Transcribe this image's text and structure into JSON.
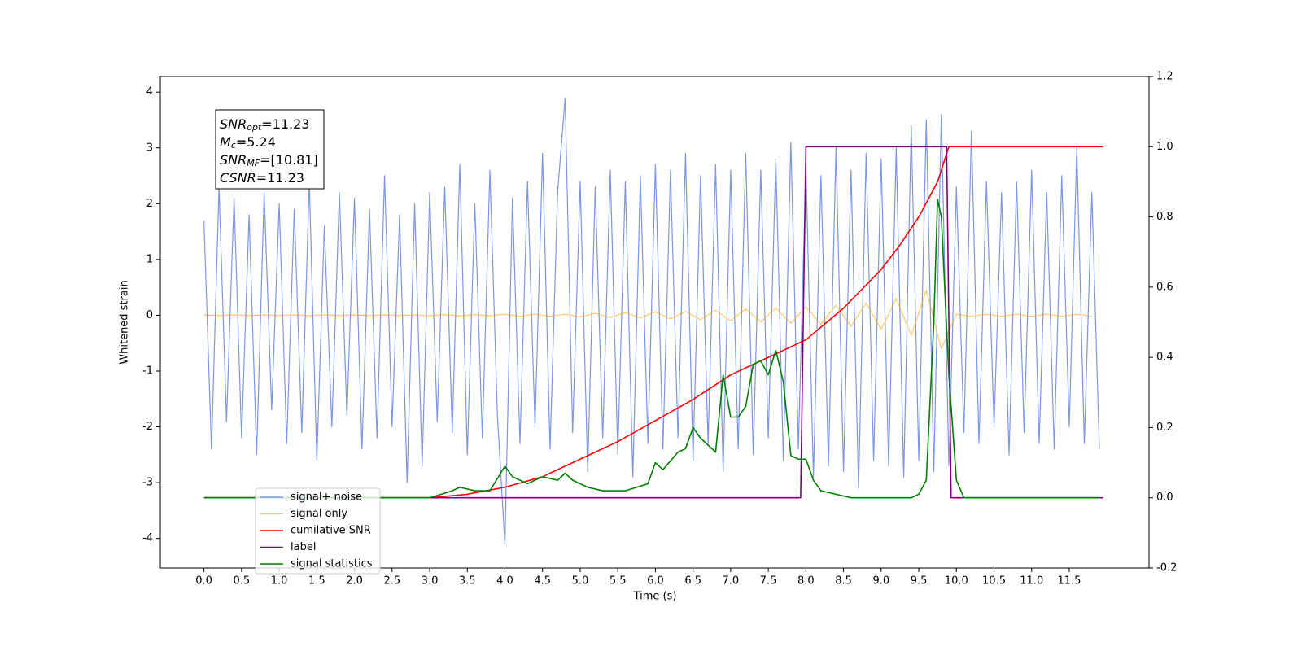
{
  "chart_data": {
    "type": "line",
    "xlabel": "Time (s)",
    "ylabel": "Whitened strain",
    "xlim": [
      -0.58,
      12.56
    ],
    "ylim": [
      -4.53,
      4.28
    ],
    "y2lim": [
      -0.2,
      1.2
    ],
    "xticks": [
      {
        "value": 0,
        "label": "0.0"
      },
      0.5,
      {
        "value": 1,
        "label": "1.0"
      },
      1.5,
      {
        "value": 2,
        "label": "2.0"
      },
      2.5,
      {
        "value": 3,
        "label": "3.0"
      },
      3.5,
      {
        "value": 4,
        "label": "4.0"
      },
      4.5,
      {
        "value": 5,
        "label": "5.0"
      },
      5.5,
      {
        "value": 6,
        "label": "6.0"
      },
      6.5,
      {
        "value": 7,
        "label": "7.0"
      },
      7.5,
      {
        "value": 8,
        "label": "8.0"
      },
      8.5,
      {
        "value": 9,
        "label": "9.0"
      },
      9.5,
      {
        "value": 10,
        "label": "10.0"
      },
      10.5,
      {
        "value": 11,
        "label": "11.0"
      },
      11.5
    ],
    "yticks": [
      -4,
      -3,
      -2,
      -1,
      0,
      1,
      2,
      3,
      4
    ],
    "y2ticks": [
      -0.2,
      {
        "value": 0,
        "label": "0.0"
      },
      0.2,
      0.4,
      0.6,
      0.8,
      {
        "value": 1,
        "label": "1.0"
      },
      1.2
    ],
    "legend": "lower left",
    "annotations": [
      {
        "main": "SNR",
        "sub": "opt",
        "rest": "=11.23"
      },
      {
        "main": "M",
        "sub": "c",
        "rest": "=5.24"
      },
      {
        "main": "SNR",
        "sub": "MF",
        "rest": "=[10.81]"
      },
      {
        "main": "CSNR",
        "rest": "=11.23"
      }
    ],
    "series": [
      {
        "name": "signal+ noise",
        "color": "#7b96e8",
        "x": [
          0,
          0.1,
          0.2,
          0.3,
          0.4,
          0.5,
          0.6,
          0.7,
          0.8,
          0.9,
          1,
          1.1,
          1.2,
          1.3,
          1.4,
          1.5,
          1.6,
          1.7,
          1.8,
          1.9,
          2,
          2.1,
          2.2,
          2.3,
          2.4,
          2.5,
          2.6,
          2.7,
          2.8,
          2.9,
          3,
          3.1,
          3.2,
          3.3,
          3.4,
          3.5,
          3.6,
          3.7,
          3.8,
          3.9,
          4,
          4.1,
          4.2,
          4.3,
          4.4,
          4.5,
          4.6,
          4.7,
          4.8,
          4.9,
          5,
          5.1,
          5.2,
          5.3,
          5.4,
          5.5,
          5.6,
          5.7,
          5.8,
          5.9,
          6,
          6.1,
          6.2,
          6.3,
          6.4,
          6.5,
          6.6,
          6.7,
          6.8,
          6.9,
          7,
          7.1,
          7.2,
          7.3,
          7.4,
          7.5,
          7.6,
          7.7,
          7.8,
          7.9,
          8,
          8.1,
          8.2,
          8.3,
          8.4,
          8.5,
          8.6,
          8.7,
          8.8,
          8.9,
          9,
          9.1,
          9.2,
          9.3,
          9.4,
          9.5,
          9.6,
          9.7,
          9.8,
          9.9,
          10,
          10.1,
          10.2,
          10.3,
          10.4,
          10.5,
          10.6,
          10.7,
          10.8,
          10.9,
          11,
          11.1,
          11.2,
          11.3,
          11.4,
          11.5,
          11.6,
          11.7,
          11.8,
          11.9
        ],
        "values": [
          1.7,
          -2.4,
          2.3,
          -1.9,
          2.1,
          -2.2,
          1.8,
          -2.5,
          2.2,
          -1.7,
          2.0,
          -2.3,
          1.9,
          -2.1,
          2.4,
          -2.6,
          1.6,
          -2.0,
          2.2,
          -1.8,
          2.1,
          -2.4,
          1.9,
          -2.2,
          2.5,
          -2.0,
          1.8,
          -3.0,
          2.0,
          -2.7,
          2.2,
          -1.9,
          2.3,
          -2.1,
          2.7,
          -2.5,
          2.0,
          -2.2,
          2.6,
          -1.8,
          -4.1,
          2.1,
          -2.3,
          2.4,
          -2.0,
          2.9,
          -2.4,
          2.2,
          3.9,
          -2.1,
          2.4,
          -2.8,
          2.3,
          -2.2,
          2.6,
          -2.5,
          2.4,
          -2.9,
          2.5,
          -2.3,
          2.7,
          -2.4,
          2.6,
          -2.2,
          2.9,
          -2.6,
          2.5,
          -2.3,
          2.7,
          -2.8,
          2.6,
          -2.4,
          2.9,
          -2.5,
          2.6,
          -2.2,
          2.8,
          -2.6,
          3.1,
          -2.4,
          2.7,
          -2.9,
          2.5,
          -2.7,
          3.0,
          -2.8,
          2.6,
          -3.1,
          2.9,
          -2.6,
          2.8,
          -2.7,
          3.0,
          -2.9,
          3.4,
          -2.6,
          3.5,
          -2.8,
          3.6,
          -2.7,
          2.3,
          -2.1,
          3.3,
          -2.3,
          2.4,
          -2.0,
          2.2,
          -2.5,
          2.4,
          -2.1,
          2.6,
          -2.3,
          2.2,
          -2.4,
          2.5,
          -2.0,
          3.0,
          -2.3,
          2.2,
          -2.4
        ]
      },
      {
        "name": "signal only",
        "color": "orange",
        "x": [
          0,
          0.2,
          0.4,
          0.6,
          0.8,
          1,
          1.2,
          1.4,
          1.6,
          1.8,
          2,
          2.2,
          2.4,
          2.6,
          2.8,
          3,
          3.2,
          3.4,
          3.6,
          3.8,
          4,
          4.2,
          4.4,
          4.6,
          4.8,
          5,
          5.2,
          5.4,
          5.6,
          5.8,
          6,
          6.2,
          6.4,
          6.6,
          6.8,
          7,
          7.2,
          7.4,
          7.6,
          7.8,
          8,
          8.2,
          8.4,
          8.6,
          8.8,
          9,
          9.2,
          9.4,
          9.6,
          9.8,
          10,
          10.2,
          10.4,
          10.6,
          10.8,
          11,
          11.2,
          11.4,
          11.6,
          11.8
        ],
        "values": [
          0.005,
          -0.005,
          0.005,
          -0.005,
          0.005,
          -0.005,
          0.005,
          -0.005,
          0.005,
          -0.005,
          0.005,
          -0.005,
          0.005,
          -0.005,
          0.005,
          -0.01,
          0.01,
          -0.01,
          0.01,
          -0.01,
          0.02,
          -0.02,
          0.02,
          -0.02,
          0.02,
          -0.03,
          0.035,
          -0.04,
          0.045,
          -0.05,
          0.06,
          -0.065,
          0.07,
          -0.08,
          0.09,
          -0.1,
          0.11,
          -0.12,
          0.13,
          -0.14,
          0.15,
          -0.16,
          0.18,
          -0.2,
          0.22,
          -0.25,
          0.3,
          -0.36,
          0.45,
          -0.6,
          0.02,
          -0.02,
          0.02,
          -0.02,
          0.02,
          -0.02,
          0.02,
          -0.02,
          0.02,
          -0.02
        ]
      },
      {
        "name": "cumilative SNR",
        "color": "red",
        "axis": "y2",
        "x": [
          0,
          3,
          3.5,
          4,
          4.5,
          5,
          5.5,
          6,
          6.5,
          7,
          7.5,
          8,
          8.5,
          9,
          9.25,
          9.5,
          9.75,
          9.9,
          11.95
        ],
        "values": [
          0,
          0,
          0.01,
          0.03,
          0.06,
          0.11,
          0.16,
          0.22,
          0.28,
          0.35,
          0.4,
          0.45,
          0.54,
          0.65,
          0.72,
          0.8,
          0.9,
          1.0,
          1.0
        ]
      },
      {
        "name": "label",
        "color": "purple",
        "axis": "y2",
        "x": [
          0,
          7.93,
          8.0,
          9.87,
          9.93,
          11.95
        ],
        "values": [
          0,
          0,
          1,
          1,
          0,
          0
        ]
      },
      {
        "name": "signal statistics",
        "color": "green",
        "axis": "y2",
        "x": [
          0,
          3.0,
          3.3,
          3.4,
          3.6,
          3.8,
          4.0,
          4.1,
          4.3,
          4.5,
          4.7,
          4.8,
          4.9,
          5.1,
          5.3,
          5.6,
          5.9,
          6.0,
          6.1,
          6.3,
          6.4,
          6.5,
          6.6,
          6.8,
          6.9,
          7.0,
          7.1,
          7.2,
          7.3,
          7.4,
          7.5,
          7.6,
          7.7,
          7.8,
          7.9,
          8.0,
          8.1,
          8.2,
          8.4,
          8.6,
          9.0,
          9.4,
          9.5,
          9.6,
          9.7,
          9.75,
          9.8,
          9.9,
          10.0,
          10.1,
          11.9
        ],
        "values": [
          0,
          0,
          0.02,
          0.03,
          0.02,
          0.02,
          0.09,
          0.06,
          0.04,
          0.06,
          0.05,
          0.07,
          0.05,
          0.03,
          0.02,
          0.02,
          0.04,
          0.1,
          0.08,
          0.13,
          0.14,
          0.2,
          0.17,
          0.13,
          0.35,
          0.23,
          0.23,
          0.26,
          0.38,
          0.39,
          0.35,
          0.42,
          0.33,
          0.12,
          0.11,
          0.11,
          0.05,
          0.02,
          0.01,
          0,
          0,
          0,
          0.01,
          0.05,
          0.5,
          0.85,
          0.8,
          0.35,
          0.05,
          0,
          0
        ]
      }
    ]
  }
}
